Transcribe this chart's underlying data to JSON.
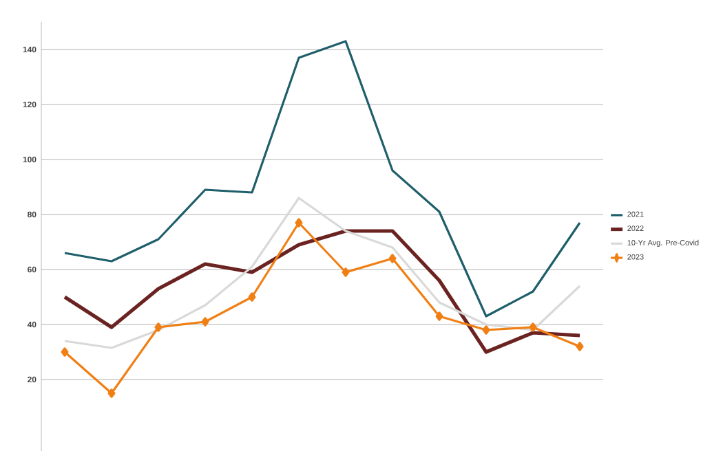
{
  "chart_data": {
    "type": "line",
    "categories": [
      null,
      null,
      null,
      null,
      null,
      null,
      null,
      null,
      null,
      null,
      null,
      null
    ],
    "ylim": [
      -6,
      150
    ],
    "yticks": [
      20,
      40,
      60,
      80,
      100,
      120,
      140
    ],
    "grid": "y",
    "legend": "right",
    "tick_labels": "y",
    "series": [
      {
        "name": "2021",
        "color": "#1f5f6b",
        "values": [
          66,
          63,
          71,
          89,
          88,
          137,
          143,
          96,
          81,
          43,
          52,
          77
        ]
      },
      {
        "name": "2022",
        "color": "#6b2322",
        "values": [
          50,
          39,
          53,
          62,
          59,
          69,
          74,
          74,
          56,
          30,
          37,
          36
        ]
      },
      {
        "name": "10-Yr Avg. Pre-Covid",
        "color": "#d9d9d9",
        "values": [
          34,
          31.5,
          38,
          47,
          61,
          86,
          74,
          68,
          48,
          40,
          38,
          54
        ]
      },
      {
        "name": "2023",
        "color": "#f07f14",
        "marker": "diamond",
        "values": [
          30,
          15,
          39,
          41,
          50,
          77,
          59,
          64,
          43,
          38,
          39,
          32
        ]
      }
    ]
  }
}
